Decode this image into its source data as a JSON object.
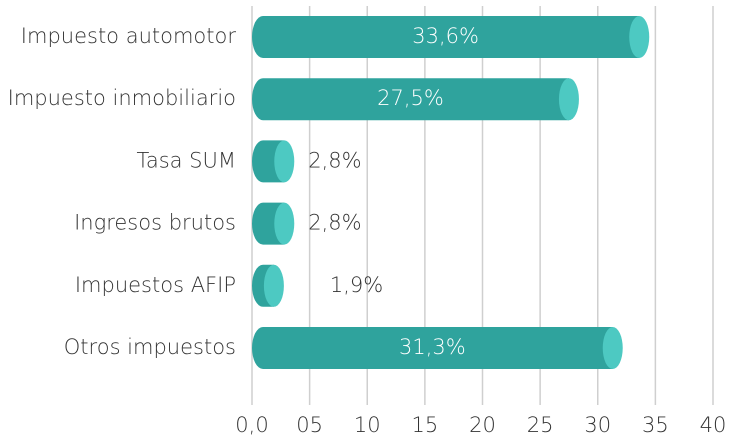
{
  "chart_data": {
    "type": "bar",
    "orientation": "horizontal",
    "categories": [
      "Impuesto automotor",
      "Impuesto inmobiliario",
      "Tasa SUM",
      "Ingresos brutos",
      "Impuestos AFIP",
      "Otros impuestos"
    ],
    "values": [
      33.6,
      27.5,
      2.8,
      2.8,
      1.9,
      31.3
    ],
    "value_labels": [
      "33,6%",
      "27,5%",
      "2,8%",
      "2,8%",
      "1,9%",
      "31,3%"
    ],
    "color": "#2fa39d",
    "cap_color": "#4dc9c2",
    "xlim": [
      0,
      40
    ],
    "xticks": [
      {
        "value": 0,
        "label": "0,0"
      },
      {
        "value": 5,
        "label": "05"
      },
      10,
      15,
      20,
      25,
      30,
      35,
      40
    ],
    "grid": true
  }
}
